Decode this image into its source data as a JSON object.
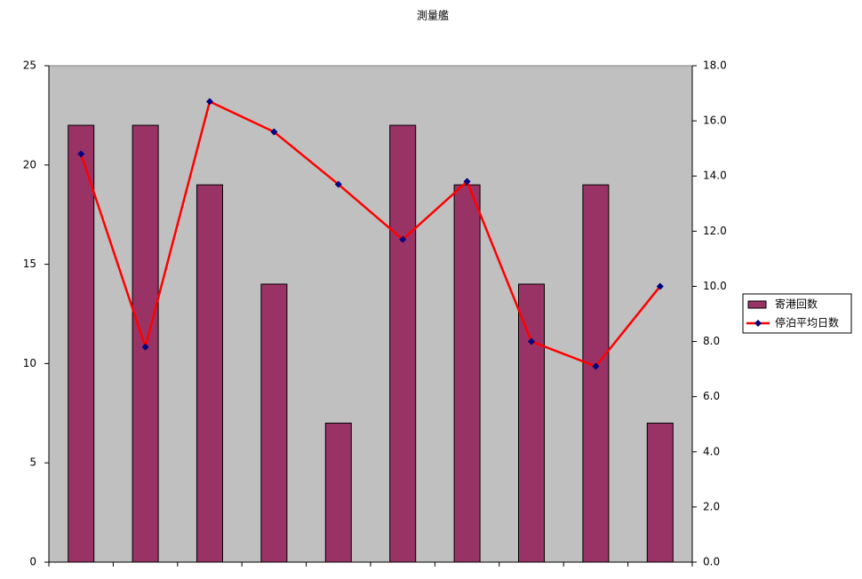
{
  "chart_data": {
    "type": "bar_line",
    "title": "測量艦",
    "categories": [
      null,
      null,
      null,
      null,
      null,
      null,
      null,
      null,
      null,
      null
    ],
    "series": [
      {
        "name": "寄港回数",
        "type": "bar",
        "color": "#993366",
        "values": [
          22,
          22,
          19,
          14,
          7,
          22,
          19,
          14,
          19,
          7
        ]
      },
      {
        "name": "停泊平均日数",
        "type": "line",
        "axis": "y2",
        "color": "#ff0000",
        "marker_color": "#000080",
        "values": [
          14.8,
          7.8,
          16.7,
          15.6,
          13.7,
          11.7,
          13.8,
          8.0,
          7.1,
          10.0
        ]
      }
    ],
    "ylim": [
      0,
      25
    ],
    "yticks": [
      0,
      5,
      10,
      15,
      20,
      25
    ],
    "y2lim": [
      0,
      18
    ],
    "y2ticks": [
      {
        "value": 0,
        "label": "0.0"
      },
      {
        "value": 2,
        "label": "2.0"
      },
      {
        "value": 4,
        "label": "4.0"
      },
      {
        "value": 6,
        "label": "6.0"
      },
      {
        "value": 8,
        "label": "8.0"
      },
      {
        "value": 10,
        "label": "10.0"
      },
      {
        "value": 12,
        "label": "12.0"
      },
      {
        "value": 14,
        "label": "14.0"
      },
      {
        "value": 16,
        "label": "16.0"
      },
      {
        "value": 18,
        "label": "18.0"
      }
    ],
    "plot_background": "#c0c0c0",
    "grid": false,
    "legend": "right"
  }
}
